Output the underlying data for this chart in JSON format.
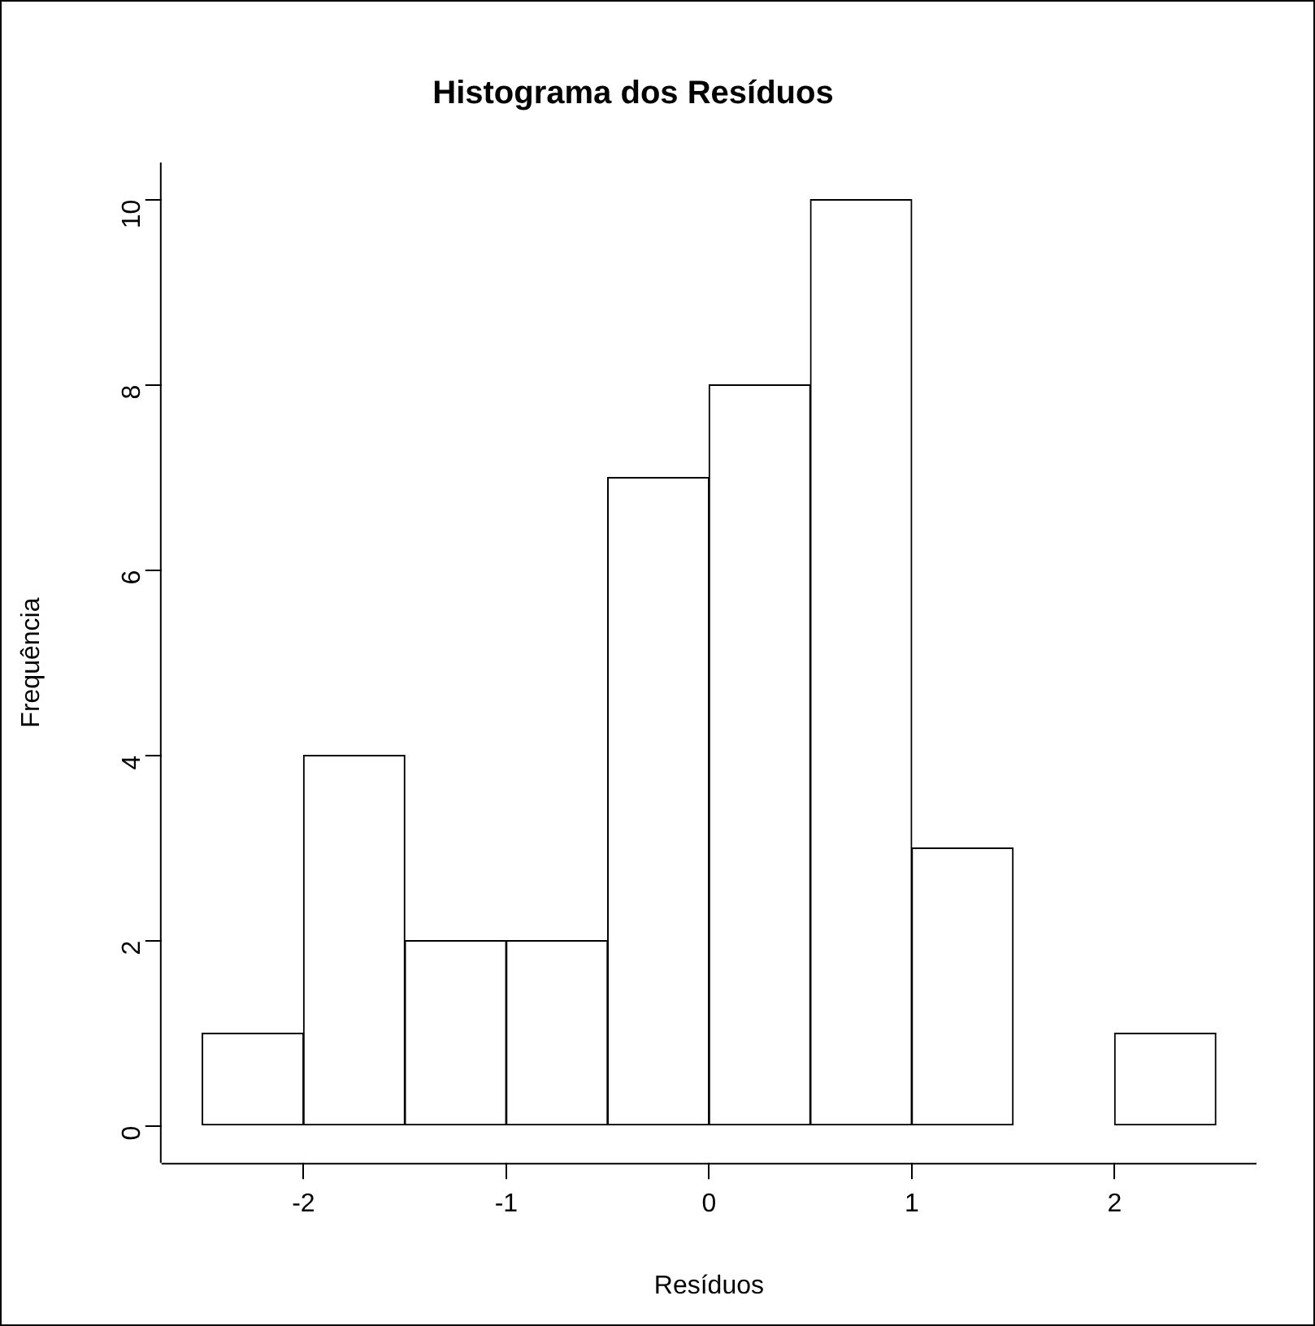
{
  "chart_data": {
    "type": "histogram",
    "title": "Histograma dos Resíduos",
    "xlabel": "Resíduos",
    "ylabel": "Frequência",
    "bins": [
      -2.5,
      -2,
      -1.5,
      -1,
      -0.5,
      0,
      0.5,
      1,
      1.5,
      2,
      2.5
    ],
    "values": [
      1,
      4,
      2,
      2,
      7,
      8,
      10,
      3,
      0,
      1
    ],
    "color": "#ffffff",
    "xlim": [
      -2.7,
      2.7
    ],
    "xticks": [
      -2,
      -1,
      0,
      1,
      2
    ],
    "ylim": [
      -0.4,
      10.4
    ],
    "yticks": [
      0,
      2,
      4,
      6,
      8,
      10
    ],
    "grid": false,
    "legend": false
  }
}
